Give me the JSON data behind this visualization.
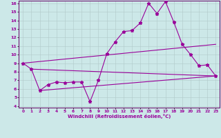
{
  "xlabel": "Windchill (Refroidissement éolien,°C)",
  "xlim": [
    0,
    23
  ],
  "ylim": [
    4,
    16
  ],
  "xticks": [
    0,
    1,
    2,
    3,
    4,
    5,
    6,
    7,
    8,
    9,
    10,
    11,
    12,
    13,
    14,
    15,
    16,
    17,
    18,
    19,
    20,
    21,
    22,
    23
  ],
  "yticks": [
    4,
    5,
    6,
    7,
    8,
    9,
    10,
    11,
    12,
    13,
    14,
    15,
    16
  ],
  "bg_color": "#cce8e8",
  "line_color": "#990099",
  "grid_color": "#b0c8c8",
  "main_series_x": [
    0,
    1,
    2,
    3,
    4,
    5,
    6,
    7,
    8,
    9,
    10,
    11,
    12,
    13,
    14,
    15,
    16,
    17,
    18,
    19,
    20,
    21,
    22,
    23
  ],
  "main_series_y": [
    9.0,
    8.3,
    5.8,
    6.5,
    6.8,
    6.7,
    6.8,
    6.8,
    4.5,
    7.0,
    10.1,
    11.5,
    12.7,
    12.8,
    13.7,
    16.0,
    14.8,
    16.2,
    13.8,
    11.2,
    10.0,
    8.7,
    8.8,
    7.5
  ],
  "line1_x": [
    0,
    23
  ],
  "line1_y": [
    9.0,
    11.2
  ],
  "line2_x": [
    1,
    23
  ],
  "line2_y": [
    8.3,
    7.5
  ],
  "line3_x": [
    2,
    23
  ],
  "line3_y": [
    5.8,
    7.5
  ]
}
